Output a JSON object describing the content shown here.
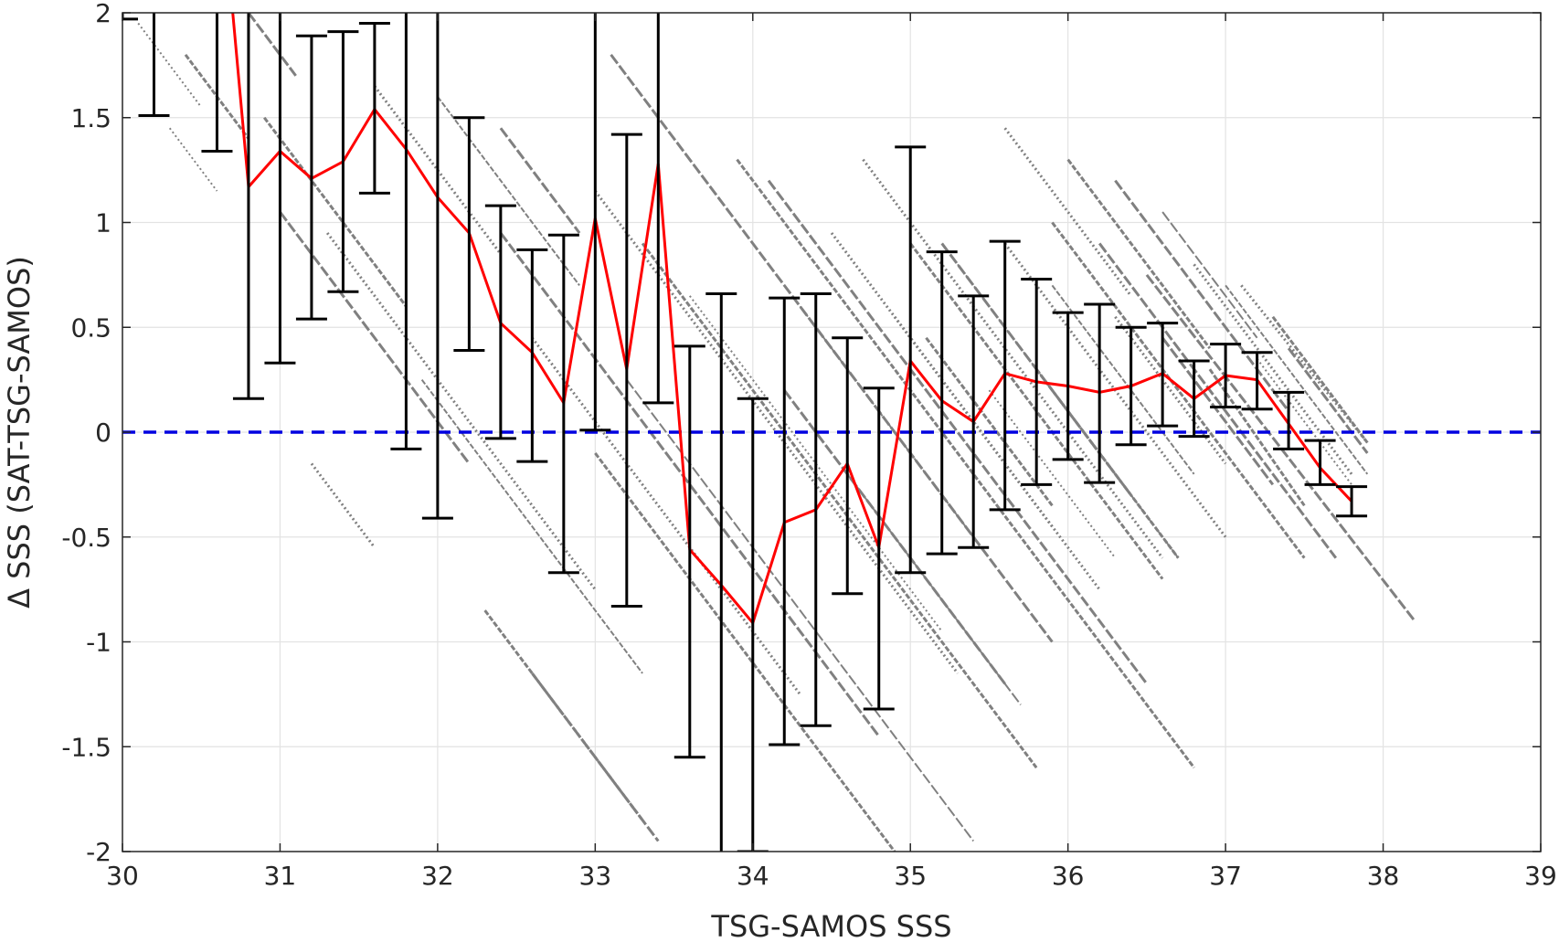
{
  "chart_data": {
    "type": "scatter",
    "xlabel": "TSG-SAMOS SSS",
    "ylabel": "Δ SSS (SAT-TSG-SAMOS)",
    "xlim": [
      30,
      39
    ],
    "ylim": [
      -2,
      2
    ],
    "xticks": [
      "30",
      "31",
      "32",
      "33",
      "34",
      "35",
      "36",
      "37",
      "38",
      "39"
    ],
    "yticks": [
      "-2",
      "-1.5",
      "-1",
      "-0.5",
      "0",
      "0.5",
      "1",
      "1.5",
      "2"
    ],
    "grid": true,
    "reference_line": {
      "y": 0,
      "style": "dashed",
      "color": "#0000e0"
    },
    "series": [
      {
        "type": "line",
        "color": "#ff0000",
        "x": [
          30.7,
          30.8,
          31.0,
          31.2,
          31.4,
          31.6,
          31.8,
          32.0,
          32.2,
          32.4,
          32.6,
          32.8,
          33.0,
          33.2,
          33.4,
          33.6,
          33.8,
          34.0,
          34.2,
          34.4,
          34.6,
          34.8,
          35.0,
          35.2,
          35.4,
          35.6,
          35.8,
          36.0,
          36.2,
          36.4,
          36.6,
          36.8,
          37.0,
          37.2,
          37.4,
          37.6,
          37.8
        ],
        "values": [
          2.0,
          1.17,
          1.34,
          1.21,
          1.29,
          1.54,
          1.35,
          1.12,
          0.95,
          0.52,
          0.38,
          0.14,
          1.02,
          0.3,
          1.28,
          -0.56,
          -0.73,
          -0.91,
          -0.43,
          -0.37,
          -0.15,
          -0.55,
          0.34,
          0.15,
          0.05,
          0.28,
          0.24,
          0.22,
          0.19,
          0.22,
          0.28,
          0.16,
          0.27,
          0.25,
          0.04,
          -0.17,
          -0.33
        ]
      },
      {
        "type": "errorbar",
        "color": "#000000",
        "x": [
          30.0,
          30.2,
          30.6,
          30.8,
          31.0,
          31.2,
          31.4,
          31.6,
          31.8,
          32.0,
          32.2,
          32.4,
          32.6,
          32.8,
          33.0,
          33.2,
          33.4,
          33.6,
          33.8,
          34.0,
          34.2,
          34.4,
          34.6,
          34.8,
          35.0,
          35.2,
          35.4,
          35.6,
          35.8,
          36.0,
          36.2,
          36.4,
          36.6,
          36.8,
          37.0,
          37.2,
          37.4,
          37.6,
          37.8
        ],
        "lower": [
          1.97,
          1.51,
          1.34,
          0.16,
          0.33,
          0.54,
          0.67,
          1.14,
          -0.08,
          -0.41,
          0.39,
          -0.03,
          -0.14,
          -0.67,
          0.01,
          -0.83,
          0.14,
          -1.55,
          -2.2,
          -2.0,
          -1.49,
          -1.4,
          -0.77,
          -1.32,
          -0.67,
          -0.58,
          -0.55,
          -0.37,
          -0.25,
          -0.13,
          -0.24,
          -0.06,
          0.03,
          -0.02,
          0.12,
          0.11,
          -0.08,
          -0.25,
          -0.4
        ],
        "upper": [
          2.3,
          2.3,
          2.3,
          2.3,
          2.3,
          1.89,
          1.91,
          1.95,
          2.3,
          2.3,
          1.5,
          1.08,
          0.87,
          0.94,
          2.3,
          1.42,
          2.3,
          0.41,
          0.66,
          0.16,
          0.64,
          0.66,
          0.45,
          0.21,
          1.36,
          0.86,
          0.65,
          0.91,
          0.73,
          0.57,
          0.61,
          0.5,
          0.52,
          0.34,
          0.42,
          0.38,
          0.19,
          -0.04,
          -0.26
        ]
      },
      {
        "type": "scatter-streaks",
        "color": "#808080",
        "slope": -1,
        "segments": [
          [
            30.3,
            1.45,
            30.6,
            1.15
          ],
          [
            30.9,
            1.5,
            31.8,
            0.6
          ],
          [
            31.0,
            1.05,
            32.2,
            -0.15
          ],
          [
            31.3,
            0.95,
            33.0,
            -0.75
          ],
          [
            31.9,
            0.25,
            33.3,
            -1.15
          ],
          [
            32.4,
            0.95,
            34.8,
            -1.45
          ],
          [
            32.6,
            0.45,
            34.3,
            -1.25
          ],
          [
            33.0,
            -0.1,
            35.0,
            -2.1
          ],
          [
            33.2,
            0.25,
            35.4,
            -1.95
          ],
          [
            33.0,
            1.15,
            35.3,
            -1.15
          ],
          [
            33.3,
            0.9,
            35.8,
            -1.6
          ],
          [
            33.1,
            1.8,
            35.9,
            -1.0
          ],
          [
            33.6,
            0.65,
            35.2,
            -0.95
          ],
          [
            33.9,
            1.3,
            36.8,
            -1.6
          ],
          [
            34.1,
            1.2,
            36.5,
            -1.2
          ],
          [
            34.5,
            0.95,
            36.2,
            -0.75
          ],
          [
            34.3,
            0.6,
            35.4,
            -0.5
          ],
          [
            34.2,
            0.2,
            35.6,
            -1.2
          ],
          [
            34.7,
            1.3,
            36.6,
            -0.6
          ],
          [
            35.0,
            0.9,
            36.6,
            -0.7
          ],
          [
            35.3,
            0.8,
            36.7,
            -0.6
          ],
          [
            35.6,
            0.9,
            37.0,
            -0.5
          ],
          [
            35.9,
            1.0,
            37.5,
            -0.6
          ],
          [
            36.2,
            0.9,
            37.7,
            -0.6
          ],
          [
            35.5,
            0.2,
            36.3,
            -0.6
          ],
          [
            35.8,
            0.3,
            36.7,
            -0.6
          ],
          [
            36.5,
            0.75,
            38.2,
            -0.9
          ],
          [
            36.8,
            0.8,
            37.8,
            -0.2
          ],
          [
            37.0,
            0.7,
            37.9,
            -0.2
          ],
          [
            36.3,
            1.2,
            37.4,
            0.1
          ],
          [
            35.6,
            1.45,
            36.4,
            0.65
          ],
          [
            36.0,
            1.3,
            36.9,
            0.4
          ],
          [
            36.6,
            1.05,
            37.2,
            0.45
          ],
          [
            37.1,
            0.7,
            37.9,
            -0.05
          ],
          [
            37.3,
            0.55,
            37.9,
            -0.05
          ],
          [
            37.4,
            0.4,
            37.9,
            -0.1
          ],
          [
            37.2,
            0.35,
            37.8,
            -0.25
          ],
          [
            36.9,
            0.3,
            37.5,
            -0.35
          ],
          [
            36.6,
            0.45,
            37.3,
            -0.25
          ],
          [
            36.3,
            0.55,
            37.0,
            -0.15
          ],
          [
            35.9,
            0.7,
            36.8,
            -0.2
          ],
          [
            35.2,
            0.9,
            36.4,
            -0.3
          ],
          [
            34.9,
            0.55,
            35.9,
            -0.45
          ],
          [
            35.1,
            0.45,
            35.9,
            -0.35
          ],
          [
            34.6,
            -0.2,
            35.7,
            -1.3
          ],
          [
            31.2,
            -0.15,
            31.6,
            -0.55
          ],
          [
            32.3,
            -0.85,
            33.3,
            -1.85
          ],
          [
            32.6,
            -1.15,
            33.4,
            -1.95
          ],
          [
            30.1,
            1.95,
            30.5,
            1.55
          ],
          [
            30.4,
            1.8,
            30.8,
            1.4
          ],
          [
            30.8,
            2.0,
            31.1,
            1.7
          ],
          [
            31.6,
            1.65,
            32.4,
            0.85
          ],
          [
            32.0,
            1.6,
            32.9,
            0.7
          ],
          [
            32.4,
            1.45,
            32.9,
            0.95
          ]
        ]
      }
    ]
  }
}
